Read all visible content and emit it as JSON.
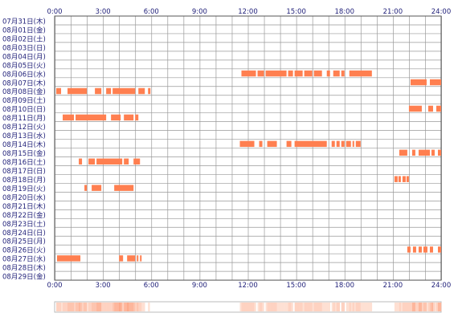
{
  "chart_data": {
    "type": "heatmap",
    "title": "",
    "xlabel": "",
    "ylabel": "",
    "x_ticks": [
      "0:00",
      "3:00",
      "6:00",
      "9:00",
      "12:00",
      "15:00",
      "18:00",
      "21:00",
      "24:00"
    ],
    "xlim_hours": [
      0,
      24
    ],
    "grid": true,
    "colors": {
      "active": "#ff7f50",
      "grid": "#999999",
      "axis": "#555555",
      "text": "#22227a",
      "summary_high": "#fca889",
      "summary_low": "#ffeee6"
    },
    "days": [
      {
        "label": "07月31日(木)",
        "intervals": []
      },
      {
        "label": "08月01日(金)",
        "intervals": []
      },
      {
        "label": "08月02日(土)",
        "intervals": []
      },
      {
        "label": "08月03日(日)",
        "intervals": []
      },
      {
        "label": "08月04日(月)",
        "intervals": []
      },
      {
        "label": "08月05日(火)",
        "intervals": []
      },
      {
        "label": "08月06日(水)",
        "intervals": [
          [
            11.6,
            12.5
          ],
          [
            12.6,
            13.0
          ],
          [
            13.1,
            14.4
          ],
          [
            14.5,
            14.8
          ],
          [
            14.9,
            15.4
          ],
          [
            15.5,
            16.0
          ],
          [
            16.1,
            16.6
          ],
          [
            16.9,
            17.1
          ],
          [
            17.3,
            17.7
          ],
          [
            17.8,
            18.0
          ],
          [
            18.3,
            19.7
          ]
        ]
      },
      {
        "label": "08月07日(木)",
        "intervals": [
          [
            22.1,
            23.1
          ],
          [
            23.3,
            24.0
          ]
        ]
      },
      {
        "label": "08月08日(金)",
        "intervals": [
          [
            0.1,
            0.4
          ],
          [
            0.8,
            2.0
          ],
          [
            2.5,
            2.9
          ],
          [
            3.2,
            3.5
          ],
          [
            3.6,
            5.0
          ],
          [
            5.2,
            5.6
          ],
          [
            5.8,
            5.95
          ]
        ]
      },
      {
        "label": "08月09日(土)",
        "intervals": []
      },
      {
        "label": "08月10日(日)",
        "intervals": [
          [
            22.0,
            22.8
          ],
          [
            23.2,
            23.5
          ],
          [
            23.7,
            24.0
          ]
        ]
      },
      {
        "label": "08月11日(月)",
        "intervals": [
          [
            0.5,
            1.2
          ],
          [
            1.3,
            3.2
          ],
          [
            3.5,
            4.1
          ],
          [
            4.3,
            4.9
          ],
          [
            5.0,
            5.2
          ]
        ]
      },
      {
        "label": "08月12日(火)",
        "intervals": []
      },
      {
        "label": "08月13日(水)",
        "intervals": []
      },
      {
        "label": "08月14日(木)",
        "intervals": [
          [
            11.5,
            12.4
          ],
          [
            12.7,
            12.9
          ],
          [
            13.2,
            13.8
          ],
          [
            14.4,
            14.7
          ],
          [
            14.9,
            16.9
          ],
          [
            17.2,
            17.4
          ],
          [
            17.5,
            17.7
          ],
          [
            17.8,
            18.0
          ],
          [
            18.1,
            18.4
          ],
          [
            18.5,
            18.6
          ],
          [
            18.7,
            19.0
          ]
        ]
      },
      {
        "label": "08月15日(金)",
        "intervals": [
          [
            21.4,
            21.9
          ],
          [
            22.2,
            22.4
          ],
          [
            22.6,
            23.3
          ],
          [
            23.4,
            23.6
          ],
          [
            23.8,
            24.0
          ]
        ]
      },
      {
        "label": "08月16日(土)",
        "intervals": [
          [
            1.5,
            1.7
          ],
          [
            2.1,
            2.5
          ],
          [
            2.6,
            4.2
          ],
          [
            4.3,
            4.6
          ],
          [
            4.9,
            5.3
          ]
        ]
      },
      {
        "label": "08月17日(日)",
        "intervals": []
      },
      {
        "label": "08月18日(月)",
        "intervals": [
          [
            21.1,
            21.3
          ],
          [
            21.35,
            21.5
          ],
          [
            21.6,
            21.8
          ],
          [
            21.85,
            22.0
          ]
        ]
      },
      {
        "label": "08月19日(火)",
        "intervals": [
          [
            1.85,
            2.0
          ],
          [
            2.3,
            2.9
          ],
          [
            3.7,
            4.9
          ]
        ]
      },
      {
        "label": "08月20日(水)",
        "intervals": []
      },
      {
        "label": "08月21日(木)",
        "intervals": []
      },
      {
        "label": "08月22日(金)",
        "intervals": []
      },
      {
        "label": "08月23日(土)",
        "intervals": []
      },
      {
        "label": "08月24日(日)",
        "intervals": []
      },
      {
        "label": "08月25日(月)",
        "intervals": []
      },
      {
        "label": "08月26日(火)",
        "intervals": [
          [
            21.9,
            22.1
          ],
          [
            22.25,
            22.45
          ],
          [
            22.6,
            22.8
          ],
          [
            22.9,
            23.15
          ],
          [
            23.3,
            23.5
          ],
          [
            23.8,
            24.0
          ]
        ]
      },
      {
        "label": "08月27日(水)",
        "intervals": [
          [
            0.15,
            1.6
          ],
          [
            4.0,
            4.25
          ],
          [
            4.5,
            5.0
          ],
          [
            5.1,
            5.2
          ],
          [
            5.3,
            5.4
          ]
        ]
      },
      {
        "label": "08月28日(木)",
        "intervals": []
      },
      {
        "label": "08月29日(金)",
        "intervals": []
      }
    ]
  }
}
